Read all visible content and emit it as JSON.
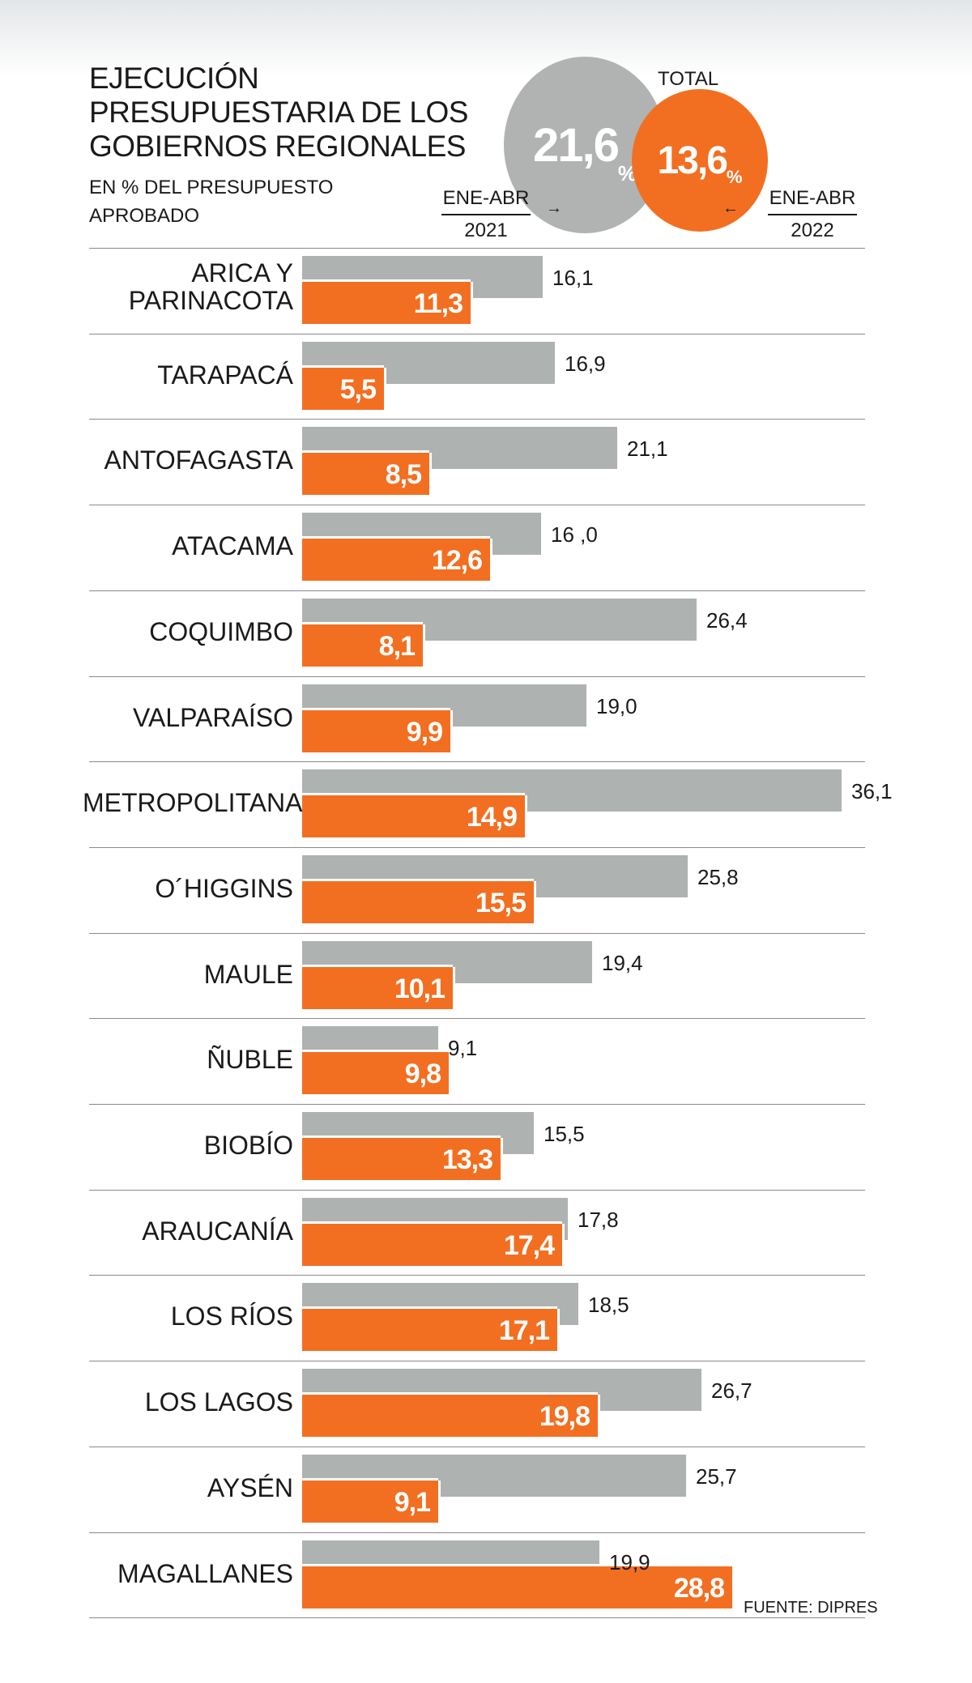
{
  "title": "EJECUCIÓN PRESUPUESTARIA DE LOS GOBIERNOS REGIONALES",
  "subtitle": "EN % DEL PRESUPUESTO APROBADO",
  "total": {
    "label": "TOTAL",
    "value_2021": "21,6",
    "value_2022": "13,6",
    "pct_sign": "%",
    "period_2021_top": "ENE-ABR",
    "period_2021_bottom": "2021",
    "period_2022_top": "ENE-ABR",
    "period_2022_bottom": "2022"
  },
  "source": "FUENTE: DIPRES",
  "colors": {
    "2021": "#aeb2b1",
    "2022": "#f26f21"
  },
  "chart_data": {
    "type": "bar",
    "orientation": "horizontal",
    "series": [
      {
        "values": [
          16.1,
          16.9,
          21.1,
          16.0,
          26.4,
          19.0,
          36.1,
          25.8,
          19.4,
          9.1,
          15.5,
          17.8,
          18.5,
          26.7,
          25.7,
          19.9
        ],
        "labels": [
          "16,1",
          "16,9",
          "21,1",
          "16 ,0",
          "26,4",
          "19,0",
          "36,1",
          "25,8",
          "19,4",
          "9,1",
          "15,5",
          "17,8",
          "18,5",
          "26,7",
          "25,7",
          "19,9"
        ]
      },
      {
        "values": [
          11.3,
          5.5,
          8.5,
          12.6,
          8.1,
          9.9,
          14.9,
          15.5,
          10.1,
          9.8,
          13.3,
          17.4,
          17.1,
          19.8,
          9.1,
          28.8
        ],
        "labels": [
          "11,3",
          "5,5",
          "8,5",
          "12,6",
          "8,1",
          "9,9",
          "14,9",
          "15,5",
          "10,1",
          "9,8",
          "13,3",
          "17,4",
          "17,1",
          "19,8",
          "9,1",
          "28,8"
        ]
      }
    ],
    "categories": [
      "ARICA Y PARINACOTA",
      "TARAPACÁ",
      "ANTOFAGASTA",
      "ATACAMA",
      "COQUIMBO",
      "VALPARAÍSO",
      "METROPOLITANA",
      "O´HIGGINS",
      "MAULE",
      "ÑUBLE",
      "BIOBÍO",
      "ARAUCANÍA",
      "LOS RÍOS",
      "LOS LAGOS",
      "AYSÉN",
      "MAGALLANES"
    ],
    "xlim": [
      0,
      36.1
    ]
  }
}
